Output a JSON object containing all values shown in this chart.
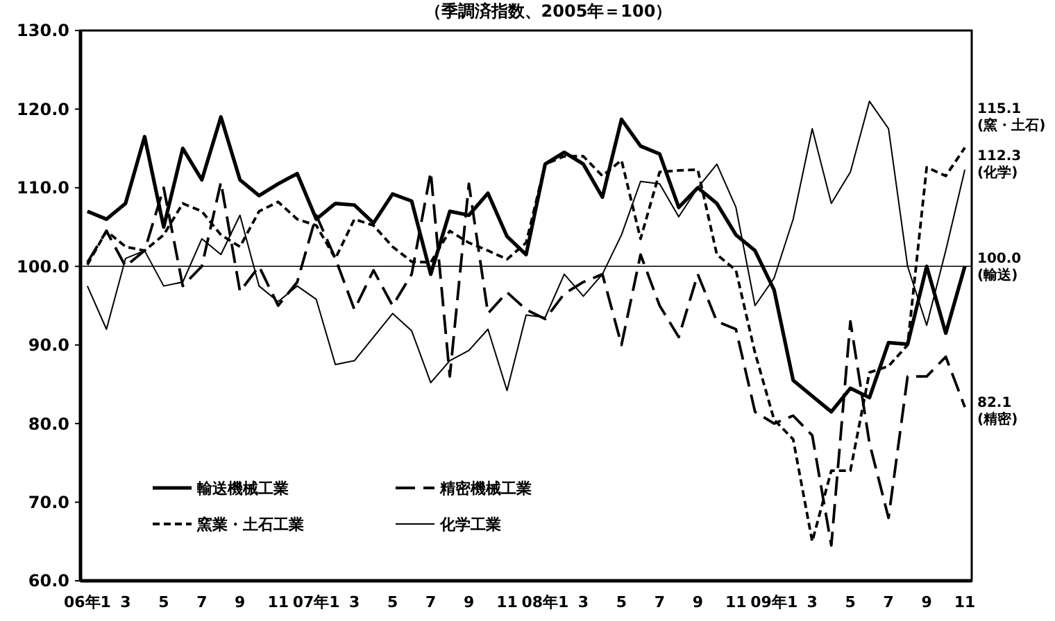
{
  "chart_data": {
    "type": "line",
    "title": "（季調済指数、2005年＝100）",
    "categories": [
      "06年1",
      null,
      "3",
      null,
      "5",
      null,
      "7",
      null,
      "9",
      null,
      "11",
      null,
      "07年1",
      null,
      "3",
      null,
      "5",
      null,
      "7",
      null,
      "9",
      null,
      "11",
      null,
      "08年1",
      null,
      "3",
      null,
      "5",
      null,
      "7",
      null,
      "9",
      null,
      "11",
      null,
      "09年1",
      null,
      "3",
      null,
      "5",
      null,
      "7",
      null,
      "9",
      null,
      "11"
    ],
    "ylim": [
      60,
      130
    ],
    "yticks": [
      {
        "value": 60,
        "label": "60.0"
      },
      {
        "value": 70,
        "label": "70.0"
      },
      {
        "value": 80,
        "label": "80.0"
      },
      {
        "value": 90,
        "label": "90.0"
      },
      {
        "value": 100,
        "label": "100.0"
      },
      {
        "value": 110,
        "label": "110.0"
      },
      {
        "value": 120,
        "label": "120.0"
      },
      {
        "value": 130,
        "label": "130.0"
      }
    ],
    "legend": "bottom left",
    "ref_lines": [
      {
        "axis": "y",
        "value": 100,
        "color": "#000000"
      }
    ],
    "annotations": [
      "115.1\n(窯・土石)",
      "112.3\n(化学)",
      "100.0\n(輸送)",
      "82.1\n(精密)"
    ],
    "series": [
      {
        "name": "輸送機械工業",
        "color": "#000000",
        "line_style": "solid",
        "values": [
          107,
          106,
          108,
          116.5,
          105,
          115,
          111,
          119,
          111,
          109,
          110.5,
          111.8,
          106,
          108,
          107.8,
          105.5,
          109.2,
          108.3,
          99,
          107,
          106.5,
          109.3,
          103.8,
          101.5,
          113,
          114.5,
          113,
          108.8,
          118.7,
          115.3,
          114.3,
          107.5,
          110,
          108,
          104,
          102,
          97,
          85.5,
          83.5,
          81.5,
          84.5,
          83.3,
          90.3,
          90.1,
          100,
          91.5,
          100.0
        ]
      },
      {
        "name": "精密機械工業",
        "color": "#000000",
        "line_style": "dashed",
        "values": [
          100.5,
          104.5,
          100,
          102,
          110,
          97.5,
          100,
          110.7,
          96.8,
          100,
          95,
          98,
          106.5,
          101,
          94.5,
          99.5,
          95,
          99,
          112,
          86,
          110.5,
          94,
          96.7,
          94.5,
          93.3,
          96.5,
          98,
          99,
          90,
          101.5,
          95,
          91,
          99,
          93,
          92,
          81.5,
          80,
          81,
          78.5,
          64.5,
          93,
          77.5,
          68,
          86,
          86,
          88.5,
          82.1
        ]
      },
      {
        "name": "窯業・土石工業",
        "color": "#000000",
        "line_style": "dotted",
        "values": [
          100.2,
          104.5,
          102.5,
          102,
          104,
          108,
          107,
          104,
          102.5,
          107,
          108.2,
          106,
          105.2,
          101,
          106,
          105.2,
          102.5,
          100.6,
          100.5,
          104.5,
          103,
          102,
          100.9,
          103,
          113,
          114,
          114,
          111.5,
          113.5,
          103.5,
          112,
          112.2,
          112.3,
          101.5,
          99.5,
          89,
          80.5,
          78,
          65,
          74,
          74,
          86.5,
          87.3,
          90,
          112.6,
          111.5,
          115.1
        ]
      },
      {
        "name": "化学工業",
        "color": "#000000",
        "line_style": "solid",
        "values": [
          97.5,
          92,
          101,
          102,
          97.5,
          98,
          103.5,
          101.5,
          106.5,
          97.5,
          95.5,
          97.5,
          95.8,
          87.5,
          88,
          91,
          94,
          91.8,
          85.2,
          88,
          89.3,
          92,
          84.2,
          93.8,
          93.5,
          99,
          96.2,
          99,
          104,
          110.8,
          110.5,
          106.3,
          110,
          113,
          107.5,
          95,
          98.5,
          106,
          117.5,
          108,
          112,
          121,
          117.5,
          100,
          92.5,
          102,
          112.3
        ]
      }
    ]
  }
}
